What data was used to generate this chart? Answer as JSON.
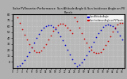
{
  "title": "Solar PV/Inverter Performance  Sun Altitude Angle & Sun Incidence Angle on PV Panels",
  "legend_labels": [
    "Sun Altitude Angle",
    "Sun Incidence Angle on PV Panels"
  ],
  "legend_colors": [
    "#0000cd",
    "#cc0000"
  ],
  "bg_color": "#b0b0b0",
  "plot_bg": "#b8b8b8",
  "grid_color": "#d8d8d8",
  "dot_size": 1.5,
  "xlim": [
    0,
    47
  ],
  "ylim": [
    -10,
    80
  ],
  "ytick_labels": [
    "0",
    "10",
    "20",
    "30",
    "40",
    "50",
    "60",
    "70",
    "80"
  ],
  "ytick_vals": [
    0,
    10,
    20,
    30,
    40,
    50,
    60,
    70,
    80
  ],
  "altitude_x": [
    2,
    3,
    4,
    5,
    6,
    7,
    8,
    9,
    10,
    11,
    12,
    13,
    14,
    15,
    16,
    17,
    18,
    19,
    20,
    21,
    22,
    23,
    24,
    25,
    26,
    27,
    28,
    29,
    30,
    31,
    32,
    33,
    34,
    35,
    36,
    37,
    38,
    39,
    40,
    41,
    42,
    43,
    44,
    45,
    46
  ],
  "altitude_y": [
    -8,
    -6,
    -2,
    3,
    10,
    17,
    25,
    33,
    40,
    47,
    53,
    57,
    60,
    61,
    61,
    59,
    55,
    50,
    43,
    36,
    28,
    20,
    12,
    5,
    -2,
    -7,
    -5,
    -1,
    4,
    11,
    18,
    26,
    34,
    41,
    48,
    54,
    59,
    62,
    63,
    62,
    60,
    56,
    51,
    44,
    37
  ],
  "incidence_x": [
    2,
    3,
    4,
    5,
    6,
    7,
    8,
    9,
    10,
    11,
    12,
    13,
    14,
    15,
    16,
    17,
    18,
    19,
    20,
    21,
    22,
    23,
    24,
    25,
    26,
    27,
    28,
    29,
    30,
    31,
    32,
    33,
    34,
    35,
    36,
    37,
    38,
    39,
    40,
    41,
    42,
    43,
    44,
    45,
    46
  ],
  "incidence_y": [
    75,
    65,
    55,
    46,
    38,
    30,
    24,
    19,
    17,
    17,
    19,
    24,
    30,
    37,
    44,
    52,
    58,
    62,
    64,
    64,
    62,
    58,
    53,
    48,
    75,
    68,
    58,
    48,
    39,
    32,
    25,
    20,
    16,
    15,
    15,
    17,
    22,
    28,
    35,
    43,
    51,
    58,
    63,
    66,
    66
  ]
}
